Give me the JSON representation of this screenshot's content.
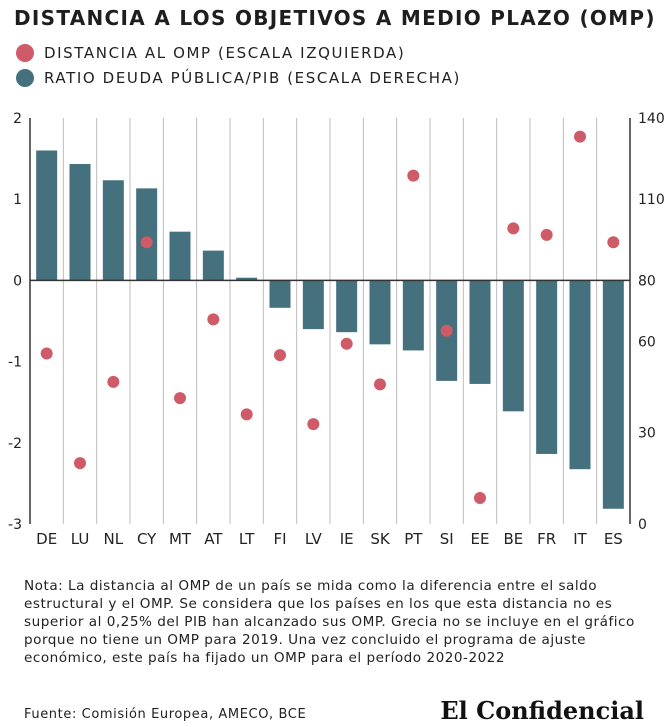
{
  "colors": {
    "dot": "#cf5a68",
    "bar": "#45717e",
    "grid": "#bdbdbd",
    "axis": "#333333"
  },
  "note": "Nota: La distancia al OMP de un país se mida como la diferencia entre el saldo estructural y el OMP. Se considera que los países en los que esta distancia no es superior al 0,25% del PIB han alcanzado sus OMP. Grecia no se incluye en el gráfico porque no tiene un OMP para 2019. Una vez concluido el programa de ajuste económico, este país ha fijado un OMP para el período 2020-2022",
  "source": "Fuente: Comisión Europea, AMECO, BCE",
  "brand": "El Confidencial",
  "chart_data": {
    "type": "bar",
    "title": "DISTANCIA A LOS OBJETIVOS A MEDIO PLAZO (OMP)",
    "categories": [
      "DE",
      "LU",
      "NL",
      "CY",
      "MT",
      "AT",
      "LT",
      "FI",
      "LV",
      "IE",
      "SK",
      "PT",
      "SI",
      "EE",
      "BE",
      "FR",
      "IT",
      "ES"
    ],
    "series": [
      {
        "name": "DISTANCIA AL OMP (ESCALA IZQUIERDA)",
        "kind": "scatter",
        "axis": "left",
        "values": [
          -0.9,
          -2.25,
          -1.25,
          0.47,
          -1.45,
          -0.48,
          -1.65,
          -0.92,
          -1.77,
          -0.78,
          -1.28,
          1.29,
          -0.62,
          -2.68,
          0.64,
          0.56,
          1.77,
          0.47
        ]
      },
      {
        "name": "RATIO DEUDA PÚBLICA/PIB (ESCALA DERECHA)",
        "kind": "bar",
        "axis": "right",
        "values": [
          128,
          123,
          117,
          114,
          98,
          91,
          81,
          71,
          64,
          63,
          59,
          57,
          47,
          46,
          37,
          23,
          18,
          5
        ]
      }
    ],
    "left_axis": {
      "ylim": [
        -3,
        2
      ],
      "ticks": [
        "-3",
        "-2",
        "-1",
        "0",
        "1",
        "2"
      ]
    },
    "right_axis": {
      "ylim": [
        0,
        140
      ],
      "ticks": [
        "0",
        "30",
        "60",
        "80",
        "110",
        "140"
      ]
    },
    "legend_position": "top-left",
    "grid": "vertical"
  }
}
